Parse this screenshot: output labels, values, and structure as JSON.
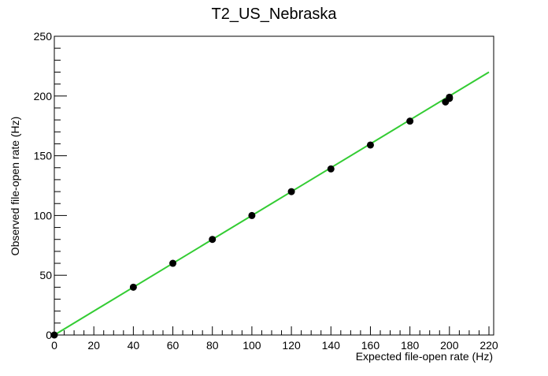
{
  "chart_data": {
    "type": "scatter",
    "title": "T2_US_Nebraska",
    "xlabel": "Expected file-open rate (Hz)",
    "ylabel": "Observed file-open rate (Hz)",
    "xlim": [
      0,
      220
    ],
    "ylim": [
      0,
      250
    ],
    "x_ticks": [
      0,
      20,
      40,
      60,
      80,
      100,
      120,
      140,
      160,
      180,
      200,
      220
    ],
    "y_ticks": [
      0,
      50,
      100,
      150,
      200,
      250
    ],
    "grid": false,
    "legend": "none",
    "series": [
      {
        "type": "scatter",
        "color": "#000000",
        "points": [
          {
            "x": 0,
            "y": 0
          },
          {
            "x": 40,
            "y": 40
          },
          {
            "x": 60,
            "y": 60
          },
          {
            "x": 80,
            "y": 80
          },
          {
            "x": 100,
            "y": 100
          },
          {
            "x": 120,
            "y": 120
          },
          {
            "x": 140,
            "y": 139
          },
          {
            "x": 160,
            "y": 159
          },
          {
            "x": 180,
            "y": 179
          },
          {
            "x": 198,
            "y": 195
          },
          {
            "x": 200,
            "y": 198
          },
          {
            "x": 200,
            "y": 199
          }
        ]
      },
      {
        "type": "line",
        "color": "#33cc33",
        "points": [
          {
            "x": 0,
            "y": 0
          },
          {
            "x": 220,
            "y": 220
          }
        ]
      }
    ]
  }
}
